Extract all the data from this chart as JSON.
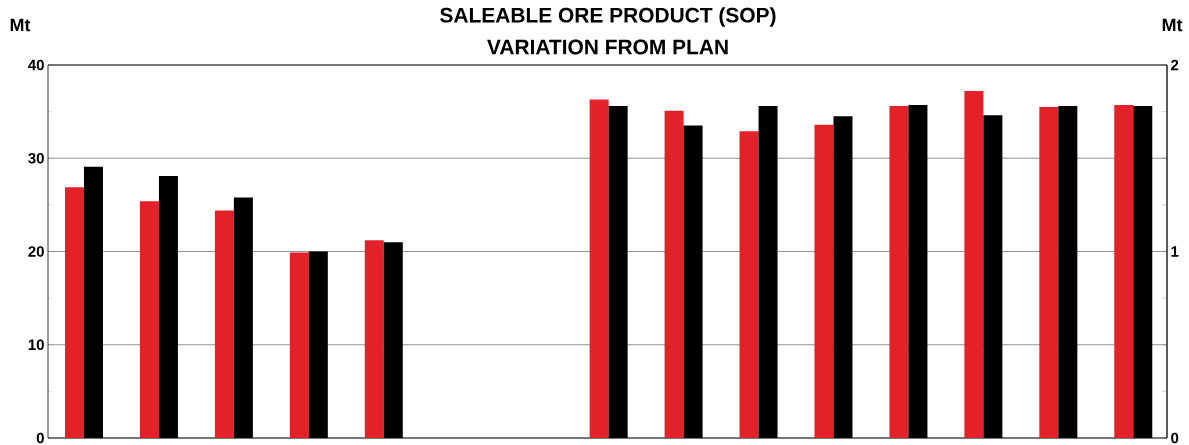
{
  "chart_data": {
    "type": "bar",
    "title": "SALEABLE ORE PRODUCT (SOP)",
    "subtitle": "VARIATION FROM PLAN",
    "ylabel": "Mt",
    "y2label": "Mt",
    "categories": [
      null,
      null,
      null,
      null,
      null,
      null,
      null,
      null,
      null,
      null,
      null,
      null,
      null,
      null,
      null
    ],
    "series": [
      {
        "color": "#e32129",
        "values": [
          26.9,
          25.4,
          24.4,
          19.9,
          21.2,
          null,
          null,
          36.3,
          35.1,
          32.9,
          33.6,
          35.6,
          37.2,
          35.5,
          35.7
        ]
      },
      {
        "color": "#000000",
        "values": [
          29.1,
          28.1,
          25.8,
          20.0,
          21.0,
          null,
          null,
          35.6,
          33.5,
          35.6,
          34.5,
          35.7,
          34.6,
          35.6,
          35.6
        ]
      }
    ],
    "ylim": [
      0,
      40
    ],
    "yticks": [
      0,
      {
        "value": 5,
        "label": null
      },
      10,
      {
        "value": 15,
        "label": null
      },
      20,
      {
        "value": 25,
        "label": null
      },
      30,
      {
        "value": 35,
        "label": null
      },
      40
    ],
    "y2lim": [
      0,
      2
    ],
    "y2ticks": [
      0,
      {
        "value": 0.25,
        "label": null
      },
      {
        "value": 0.5,
        "label": null
      },
      {
        "value": 0.75,
        "label": null
      },
      1,
      {
        "value": 1.25,
        "label": null
      },
      {
        "value": 1.5,
        "label": null
      },
      {
        "value": 1.75,
        "label": null
      },
      2
    ],
    "grid": "y"
  }
}
